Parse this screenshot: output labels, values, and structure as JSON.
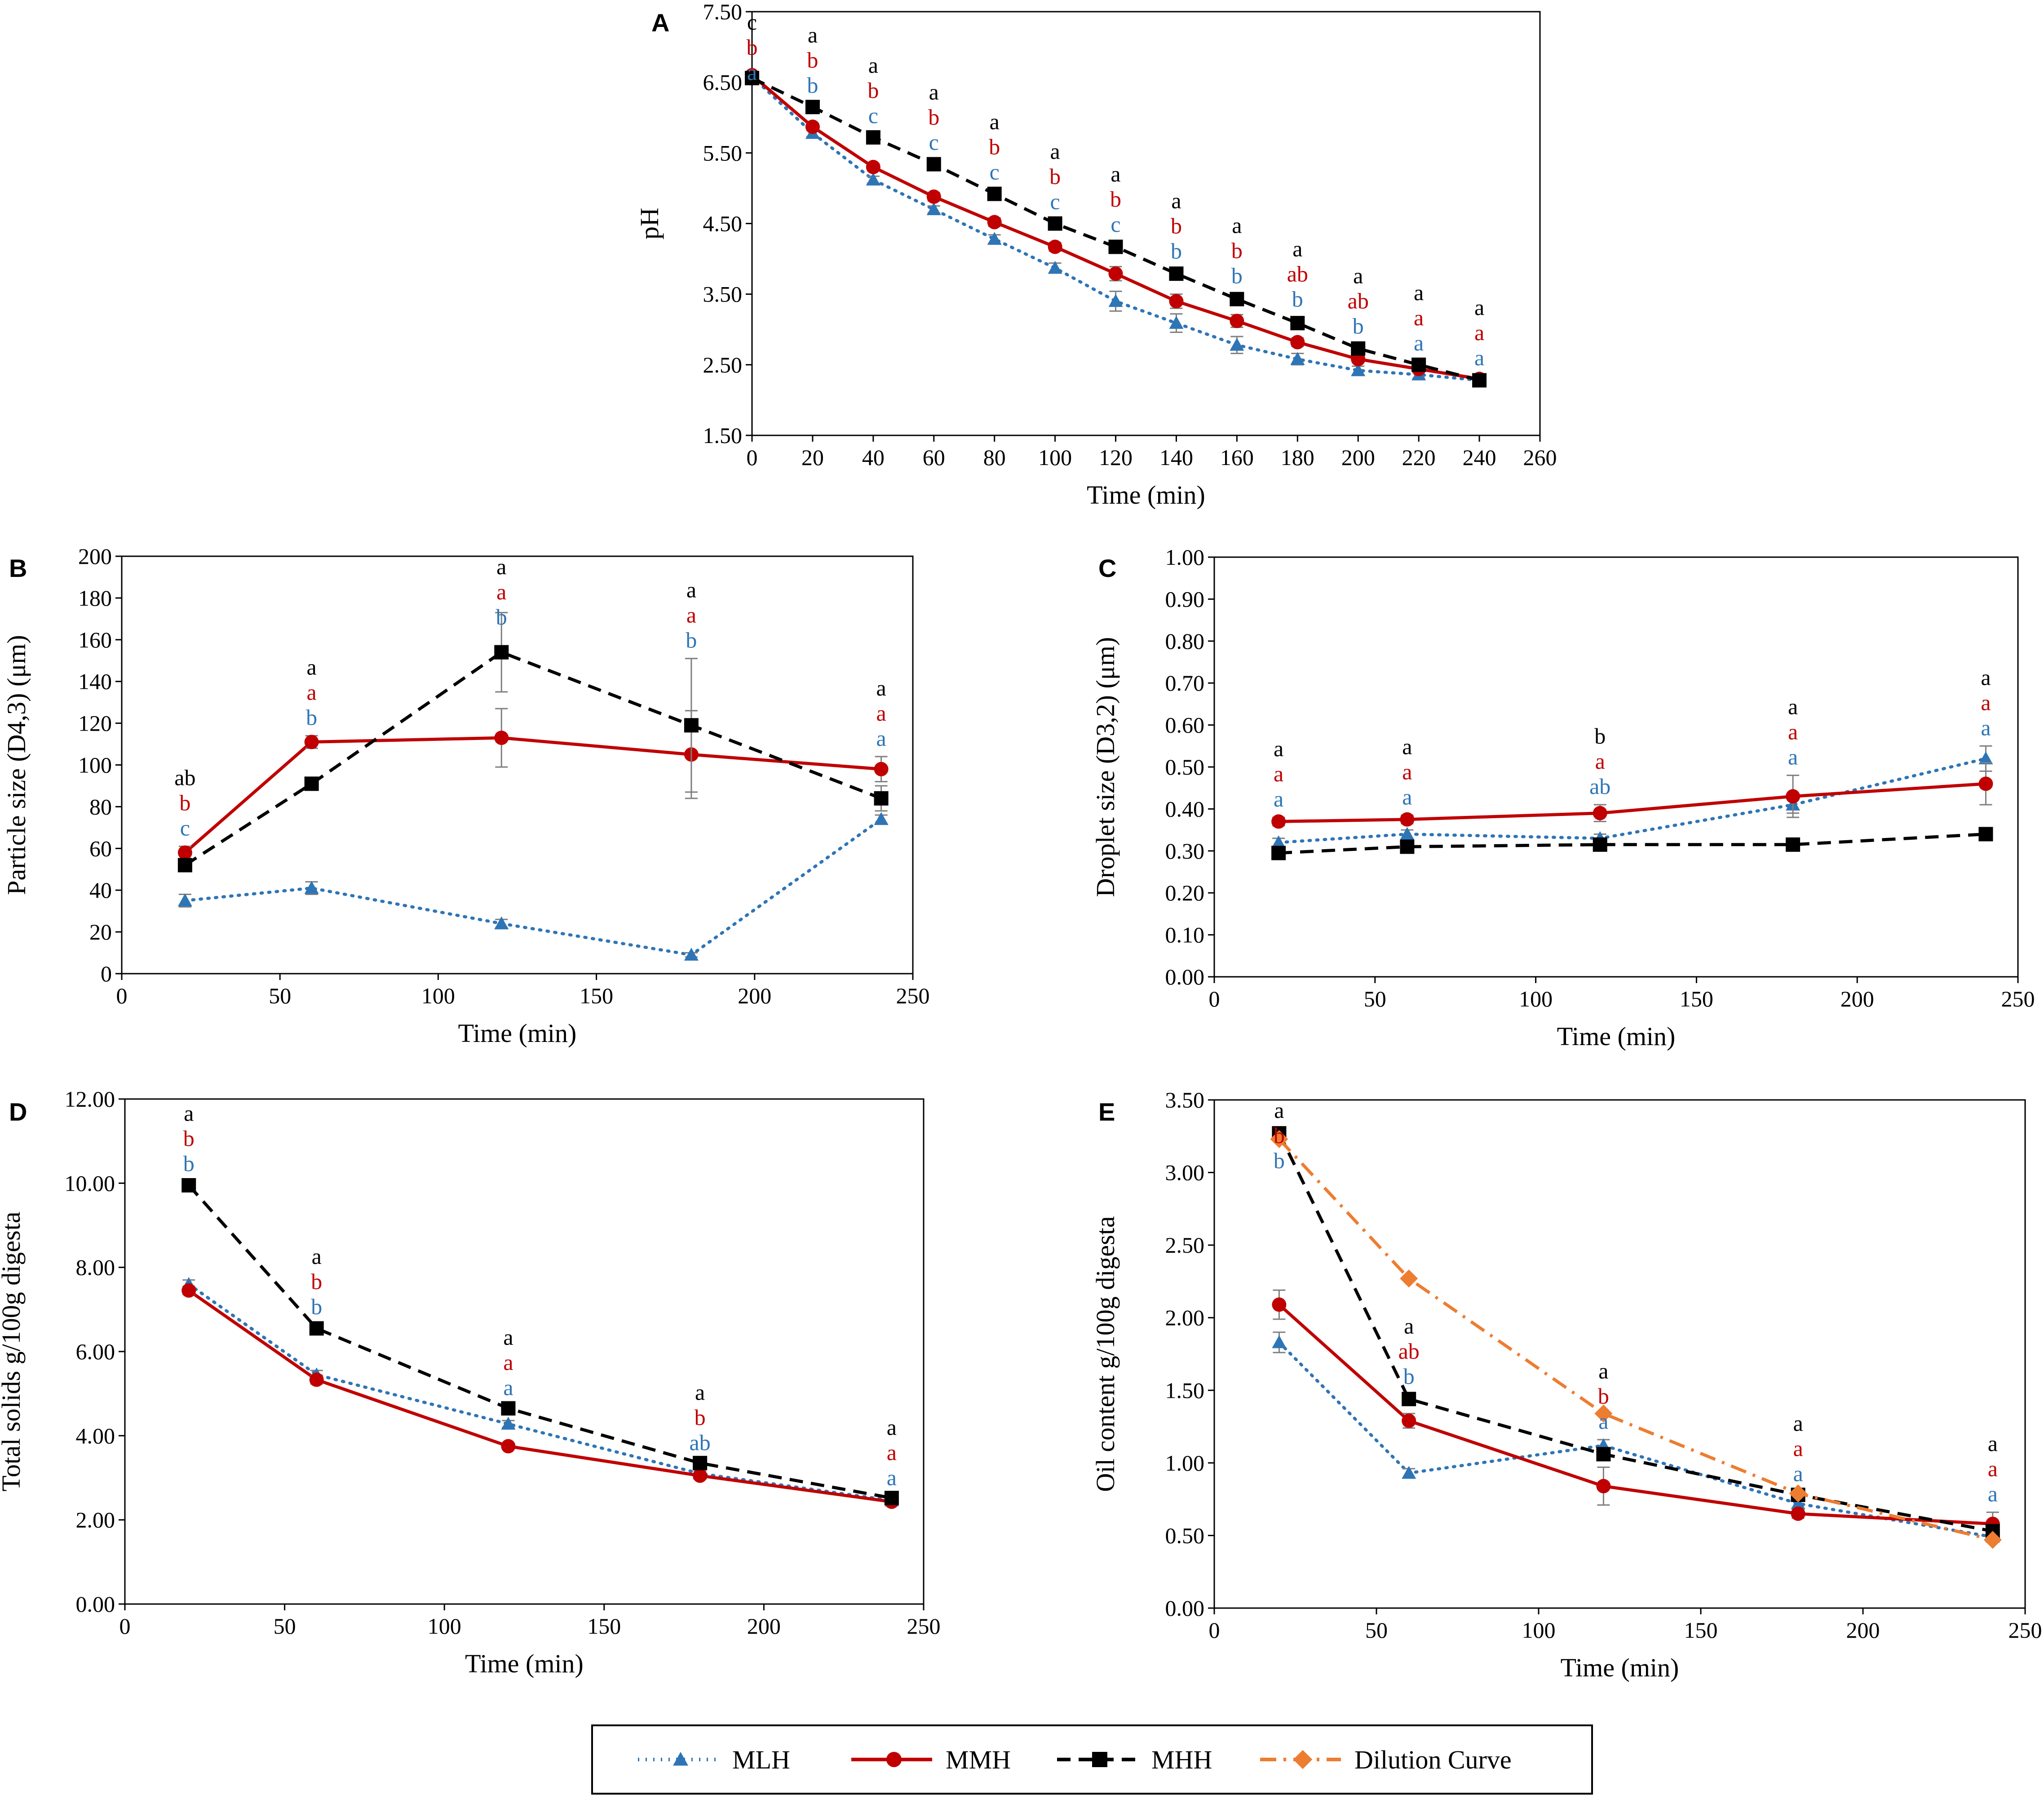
{
  "legend": {
    "items": [
      {
        "name": "MLH",
        "color": "#2e75b6",
        "marker": "triangle",
        "dash": "dot"
      },
      {
        "name": "MMH",
        "color": "#c00000",
        "marker": "circle",
        "dash": "solid"
      },
      {
        "name": "MHH",
        "color": "#000000",
        "marker": "square",
        "dash": "dash"
      },
      {
        "name": "Dilution Curve",
        "color": "#ed7d31",
        "marker": "diamond",
        "dash": "dashdot"
      }
    ]
  },
  "chart_data": [
    {
      "panel": "A",
      "type": "line",
      "xlabel": "Time (min)",
      "ylabel": "pH",
      "xlim": [
        0,
        260
      ],
      "xticks": [
        0,
        20,
        40,
        60,
        80,
        100,
        120,
        140,
        160,
        180,
        200,
        220,
        240,
        260
      ],
      "ylim": [
        1.5,
        7.5
      ],
      "yticks": [
        1.5,
        2.5,
        3.5,
        4.5,
        5.5,
        6.5,
        7.5
      ],
      "ydecimals": 2,
      "series": [
        {
          "name": "MLH",
          "color": "#2e75b6",
          "marker": "triangle",
          "dash": "dot",
          "x": [
            0,
            20,
            40,
            60,
            80,
            100,
            120,
            140,
            160,
            180,
            200,
            220,
            240
          ],
          "values": [
            6.58,
            5.78,
            5.12,
            4.7,
            4.28,
            3.87,
            3.4,
            3.09,
            2.78,
            2.58,
            2.42,
            2.36,
            2.28
          ],
          "err": [
            0,
            0.05,
            0.05,
            0.05,
            0.06,
            0.07,
            0.14,
            0.13,
            0.12,
            0.08,
            0.06,
            0.05,
            0.04
          ],
          "labels": [
            "a",
            "b",
            "c",
            "c",
            "c",
            "c",
            "c",
            "b",
            "b",
            "b",
            "b",
            "a",
            "a"
          ]
        },
        {
          "name": "MMH",
          "color": "#c00000",
          "marker": "circle",
          "dash": "solid",
          "x": [
            0,
            20,
            40,
            60,
            80,
            100,
            120,
            140,
            160,
            180,
            200,
            220,
            240
          ],
          "values": [
            6.6,
            5.87,
            5.3,
            4.88,
            4.52,
            4.17,
            3.79,
            3.4,
            3.12,
            2.82,
            2.58,
            2.44,
            2.3
          ],
          "err": [
            0,
            0.05,
            0.05,
            0.06,
            0.06,
            0.06,
            0.1,
            0.1,
            0.09,
            0.06,
            0.05,
            0.05,
            0.04
          ],
          "labels": [
            "b",
            "b",
            "b",
            "b",
            "b",
            "b",
            "b",
            "b",
            "b",
            "ab",
            "ab",
            "a",
            "a"
          ]
        },
        {
          "name": "MHH",
          "color": "#000000",
          "marker": "square",
          "dash": "dash",
          "x": [
            0,
            20,
            40,
            60,
            80,
            100,
            120,
            140,
            160,
            180,
            200,
            220,
            240
          ],
          "values": [
            6.56,
            6.15,
            5.72,
            5.34,
            4.92,
            4.5,
            4.17,
            3.79,
            3.43,
            3.09,
            2.73,
            2.5,
            2.28
          ],
          "err": [
            0,
            0.05,
            0.05,
            0.05,
            0.05,
            0.05,
            0.06,
            0.06,
            0.07,
            0.08,
            0.06,
            0.05,
            0.04
          ],
          "labels": [
            "c",
            "a",
            "a",
            "a",
            "a",
            "a",
            "a",
            "a",
            "a",
            "a",
            "a",
            "a",
            "a"
          ]
        }
      ]
    },
    {
      "panel": "B",
      "type": "line",
      "xlabel": "Time (min)",
      "ylabel": "Particle size (D4,3) (μm)",
      "xlim": [
        0,
        250
      ],
      "xticks": [
        0,
        50,
        100,
        150,
        200,
        250
      ],
      "ylim": [
        0,
        200
      ],
      "yticks": [
        0,
        20,
        40,
        60,
        80,
        100,
        120,
        140,
        160,
        180,
        200
      ],
      "ydecimals": 0,
      "series": [
        {
          "name": "MLH",
          "color": "#2e75b6",
          "marker": "triangle",
          "dash": "dot",
          "x": [
            20,
            60,
            120,
            180,
            240
          ],
          "values": [
            35,
            41,
            24,
            9,
            74
          ],
          "err": [
            3,
            3,
            2,
            1,
            2
          ],
          "labels": [
            "c",
            "b",
            "b",
            "b",
            "a"
          ]
        },
        {
          "name": "MMH",
          "color": "#c00000",
          "marker": "circle",
          "dash": "solid",
          "x": [
            20,
            60,
            120,
            180,
            240
          ],
          "values": [
            58,
            111,
            113,
            105,
            98
          ],
          "err": [
            3,
            3,
            14,
            21,
            6
          ],
          "labels": [
            "b",
            "a",
            "a",
            "a",
            "a"
          ]
        },
        {
          "name": "MHH",
          "color": "#000000",
          "marker": "square",
          "dash": "dash",
          "x": [
            20,
            60,
            120,
            180,
            240
          ],
          "values": [
            52,
            91,
            154,
            119,
            84
          ],
          "err": [
            2,
            2,
            19,
            32,
            6
          ],
          "labels": [
            "ab",
            "a",
            "a",
            "a",
            "a"
          ]
        }
      ]
    },
    {
      "panel": "C",
      "type": "line",
      "xlabel": "Time (min)",
      "ylabel": "Droplet size (D3,2) (μm)",
      "xlim": [
        0,
        250
      ],
      "xticks": [
        0,
        50,
        100,
        150,
        200,
        250
      ],
      "ylim": [
        0,
        1
      ],
      "yticks": [
        0,
        0.1,
        0.2,
        0.3,
        0.4,
        0.5,
        0.6,
        0.7,
        0.8,
        0.9,
        1.0
      ],
      "ydecimals": 2,
      "series": [
        {
          "name": "MLH",
          "color": "#2e75b6",
          "marker": "triangle",
          "dash": "dot",
          "x": [
            20,
            60,
            120,
            180,
            240
          ],
          "values": [
            0.32,
            0.34,
            0.33,
            0.41,
            0.52
          ],
          "err": [
            0.01,
            0.01,
            0.01,
            0.02,
            0.03
          ],
          "labels": [
            "a",
            "a",
            "ab",
            "a",
            "a"
          ]
        },
        {
          "name": "MMH",
          "color": "#c00000",
          "marker": "circle",
          "dash": "solid",
          "x": [
            20,
            60,
            120,
            180,
            240
          ],
          "values": [
            0.37,
            0.375,
            0.39,
            0.43,
            0.46
          ],
          "err": [
            0.01,
            0.01,
            0.02,
            0.05,
            0.05
          ],
          "labels": [
            "a",
            "a",
            "a",
            "a",
            "a"
          ]
        },
        {
          "name": "MHH",
          "color": "#000000",
          "marker": "square",
          "dash": "dash",
          "x": [
            20,
            60,
            120,
            180,
            240
          ],
          "values": [
            0.295,
            0.31,
            0.315,
            0.315,
            0.34
          ],
          "err": [
            0.01,
            0.01,
            0.01,
            0.01,
            0.01
          ],
          "labels": [
            "a",
            "a",
            "b",
            "a",
            "a"
          ]
        }
      ]
    },
    {
      "panel": "D",
      "type": "line",
      "xlabel": "Time (min)",
      "ylabel": "Total solids g/100g digesta",
      "xlim": [
        0,
        250
      ],
      "xticks": [
        0,
        50,
        100,
        150,
        200,
        250
      ],
      "ylim": [
        0,
        12
      ],
      "yticks": [
        0,
        2,
        4,
        6,
        8,
        10,
        12
      ],
      "ydecimals": 2,
      "series": [
        {
          "name": "MLH",
          "color": "#2e75b6",
          "marker": "triangle",
          "dash": "dot",
          "x": [
            20,
            60,
            120,
            180,
            240
          ],
          "values": [
            7.6,
            5.45,
            4.28,
            3.1,
            2.46
          ],
          "err": [
            0.1,
            0.1,
            0.08,
            0.06,
            0.05
          ],
          "labels": [
            "b",
            "b",
            "a",
            "ab",
            "a"
          ]
        },
        {
          "name": "MMH",
          "color": "#c00000",
          "marker": "circle",
          "dash": "solid",
          "x": [
            20,
            60,
            120,
            180,
            240
          ],
          "values": [
            7.45,
            5.33,
            3.75,
            3.05,
            2.43
          ],
          "err": [
            0.1,
            0.1,
            0.06,
            0.05,
            0.05
          ],
          "labels": [
            "b",
            "b",
            "a",
            "b",
            "a"
          ]
        },
        {
          "name": "MHH",
          "color": "#000000",
          "marker": "square",
          "dash": "dash",
          "x": [
            20,
            60,
            120,
            180,
            240
          ],
          "values": [
            9.95,
            6.55,
            4.65,
            3.35,
            2.52
          ],
          "err": [
            0.08,
            0.08,
            0.06,
            0.05,
            0.05
          ],
          "labels": [
            "a",
            "a",
            "a",
            "a",
            "a"
          ]
        }
      ]
    },
    {
      "panel": "E",
      "type": "line",
      "xlabel": "Time (min)",
      "ylabel": "Oil content g/100g digesta",
      "xlim": [
        0,
        250
      ],
      "xticks": [
        0,
        50,
        100,
        150,
        200,
        250
      ],
      "ylim": [
        0,
        3.5
      ],
      "yticks": [
        0,
        0.5,
        1.0,
        1.5,
        2.0,
        2.5,
        3.0,
        3.5
      ],
      "ydecimals": 2,
      "series": [
        {
          "name": "MLH",
          "color": "#2e75b6",
          "marker": "triangle",
          "dash": "dot",
          "x": [
            20,
            60,
            120,
            180,
            240
          ],
          "values": [
            1.83,
            0.93,
            1.12,
            0.72,
            0.49
          ],
          "err": [
            0.07,
            0.03,
            0.04,
            0.03,
            0.03
          ],
          "labels": [
            "b",
            "b",
            "a",
            "a",
            "a"
          ]
        },
        {
          "name": "MMH",
          "color": "#c00000",
          "marker": "circle",
          "dash": "solid",
          "x": [
            20,
            60,
            120,
            180,
            240
          ],
          "values": [
            2.09,
            1.29,
            0.84,
            0.65,
            0.58
          ],
          "err": [
            0.1,
            0.05,
            0.13,
            0.03,
            0.08
          ],
          "labels": [
            "b",
            "ab",
            "b",
            "a",
            "a"
          ]
        },
        {
          "name": "MHH",
          "color": "#000000",
          "marker": "square",
          "dash": "dash",
          "x": [
            20,
            60,
            120,
            180,
            240
          ],
          "values": [
            3.27,
            1.44,
            1.06,
            0.78,
            0.53
          ],
          "err": [
            0.03,
            0.03,
            0.03,
            0.02,
            0.03
          ],
          "labels": [
            "a",
            "a",
            "a",
            "a",
            "a"
          ]
        },
        {
          "name": "Dilution Curve",
          "color": "#ed7d31",
          "marker": "diamond",
          "dash": "dashdot",
          "x": [
            20,
            60,
            120,
            180,
            240
          ],
          "values": [
            3.23,
            2.27,
            1.34,
            0.79,
            0.47
          ],
          "err": [
            0,
            0,
            0,
            0,
            0
          ],
          "labels": [
            "",
            "",
            "",
            "",
            ""
          ]
        }
      ]
    }
  ]
}
